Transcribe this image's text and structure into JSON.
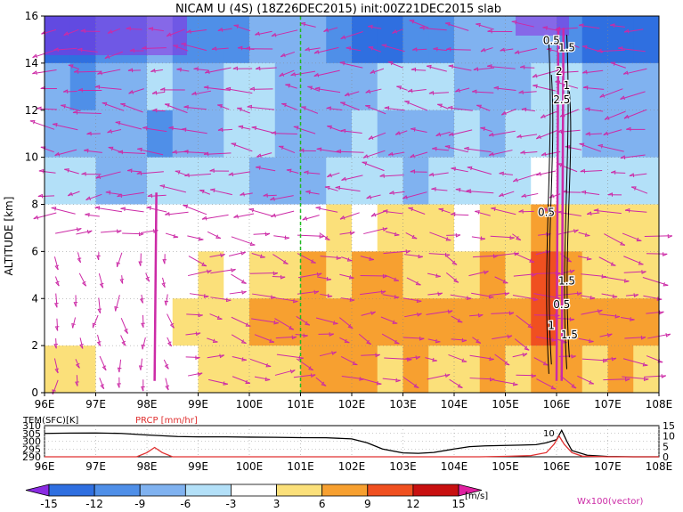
{
  "chart_data": [
    {
      "type": "heatmap",
      "title": "NICAM U (4S) (18Z26DEC2015) init:00Z21DEC2015 slab",
      "ylabel": "ALTITUDE [km]",
      "x_ticks": [
        "96E",
        "97E",
        "98E",
        "99E",
        "100E",
        "101E",
        "102E",
        "103E",
        "104E",
        "105E",
        "106E",
        "107E",
        "108E"
      ],
      "y_ticks": [
        "0",
        "2",
        "4",
        "6",
        "8",
        "10",
        "12",
        "14",
        "16"
      ],
      "xlim": [
        96,
        108
      ],
      "ylim": [
        0,
        16
      ],
      "vertical_marker_x": 101,
      "contour_labels": [
        "0.5",
        "1.5",
        "2",
        "1",
        "2.5",
        "0.5",
        "1.5",
        "0.5",
        "1",
        "1.5"
      ],
      "colorbar": {
        "unit": "[m/s]",
        "levels": [
          "-15",
          "-12",
          "-9",
          "-6",
          "-3",
          "3",
          "6",
          "9",
          "12",
          "15"
        ],
        "colors": [
          "#8a2be2",
          "#2f6fe0",
          "#4f8fe8",
          "#80b2f0",
          "#b3e0f8",
          "#ffffff",
          "#fbe07a",
          "#f7a030",
          "#f05020",
          "#c81010",
          "#e020a0"
        ]
      },
      "vector_label": "Wx100(vector)",
      "vector_color": "#cc2aa6",
      "u_rows": [
        {
          "z": 15,
          "values": [
            -14,
            -13,
            -12,
            -10,
            -9,
            -10,
            -11,
            -10,
            -9,
            -8,
            -9,
            -12,
            -14,
            -13,
            -12,
            -10,
            -9,
            -8,
            -8,
            -9,
            -10,
            -13,
            -14,
            -15
          ]
        },
        {
          "z": 13,
          "values": [
            -9,
            -10,
            -8,
            -7,
            -6,
            -7,
            -8,
            -6,
            -5,
            -7,
            -9,
            -8,
            -7,
            -6,
            -5,
            -6,
            -7,
            -8,
            -7,
            -5,
            -4,
            -9,
            -8,
            -7
          ]
        },
        {
          "z": 11,
          "values": [
            -9,
            -8,
            -7,
            -9,
            -10,
            -8,
            -7,
            -5,
            -6,
            -8,
            -9,
            -7,
            -6,
            -8,
            -9,
            -7,
            -6,
            -7,
            -5,
            -4,
            -6,
            -8,
            -9,
            -8
          ]
        },
        {
          "z": 9,
          "values": [
            -6,
            -5,
            -7,
            -8,
            -6,
            -4,
            -5,
            -6,
            -7,
            -8,
            -7,
            -6,
            -5,
            -6,
            -7,
            -5,
            -4,
            -5,
            -4,
            -3,
            -4,
            -5,
            -6,
            -5
          ]
        },
        {
          "z": 7,
          "values": [
            -1,
            0,
            0,
            1,
            0,
            0,
            -1,
            0,
            0,
            1,
            2,
            3,
            2,
            3,
            4,
            3,
            2,
            3,
            4,
            8,
            5,
            4,
            3,
            4
          ]
        },
        {
          "z": 5,
          "values": [
            0,
            0,
            1,
            1,
            1,
            2,
            3,
            2,
            4,
            5,
            6,
            5,
            7,
            6,
            5,
            4,
            5,
            6,
            5,
            9,
            6,
            5,
            4,
            5
          ]
        },
        {
          "z": 3,
          "values": [
            0,
            0,
            1,
            1,
            2,
            3,
            4,
            5,
            6,
            6,
            7,
            6,
            7,
            6,
            7,
            6,
            6,
            7,
            6,
            10,
            7,
            6,
            7,
            6
          ]
        },
        {
          "z": 1,
          "values": [
            3,
            3,
            2,
            1,
            1,
            2,
            3,
            4,
            4,
            5,
            7,
            6,
            6,
            5,
            6,
            5,
            5,
            6,
            5,
            8,
            6,
            5,
            6,
            5
          ]
        }
      ]
    },
    {
      "type": "line",
      "legend_temp": "TEM(SFC)[K]",
      "legend_prcp": "PRCP [mm/hr]",
      "y_ticks_left": [
        "310",
        "305",
        "300",
        "295",
        "290"
      ],
      "y_ticks_right": [
        "15",
        "10",
        "5",
        "0"
      ],
      "ylim_left": [
        290,
        310
      ],
      "ylim_right": [
        0,
        15
      ],
      "annotation": "10",
      "x_ticks": [
        "96E",
        "97E",
        "98E",
        "99E",
        "100E",
        "101E",
        "102E",
        "103E",
        "104E",
        "105E",
        "106E",
        "107E",
        "108E"
      ],
      "series": [
        {
          "color": "#000000",
          "x": [
            96,
            96.5,
            97,
            97.5,
            98,
            98.3,
            98.6,
            99,
            99.5,
            100,
            100.5,
            101,
            101.5,
            102,
            102.3,
            102.6,
            103,
            103.3,
            103.6,
            104,
            104.3,
            104.6,
            105,
            105.3,
            105.6,
            105.8,
            106,
            106.1,
            106.2,
            106.3,
            106.6,
            107,
            107.5,
            108
          ],
          "y": [
            305,
            305.2,
            305.3,
            305,
            304,
            303.5,
            303,
            302.8,
            302.8,
            302.6,
            302.5,
            302.3,
            302.2,
            301.5,
            299,
            295,
            292.5,
            292.2,
            292.8,
            295,
            296.5,
            297,
            297.3,
            297.5,
            297.8,
            299,
            301,
            307,
            300,
            294,
            291,
            290.2,
            290,
            290
          ]
        },
        {
          "color": "#e03030",
          "x": [
            96,
            97.8,
            98,
            98.15,
            98.3,
            98.5,
            99,
            104.5,
            105,
            105.5,
            105.8,
            105.95,
            106.05,
            106.15,
            106.3,
            106.5,
            107,
            108
          ],
          "y": [
            0,
            0,
            2,
            4.5,
            2,
            0,
            0,
            0,
            0.2,
            0.6,
            2,
            6,
            10,
            6,
            2,
            0.3,
            0,
            0
          ]
        }
      ]
    }
  ]
}
